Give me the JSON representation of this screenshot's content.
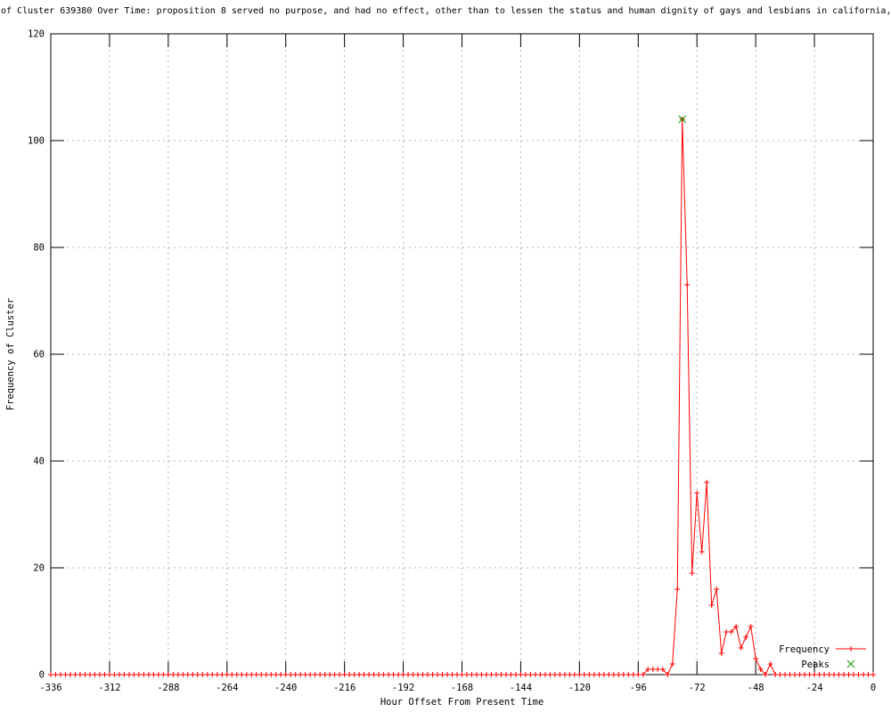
{
  "chart_data": {
    "type": "line",
    "title": "of Cluster 639380 Over Time: proposition 8 served no purpose, and had no effect, other than to lessen the status and human dignity of gays and lesbians in california,",
    "xlabel": "Hour Offset From Present Time",
    "ylabel": "Frequency of Cluster",
    "xlim": [
      -336,
      0
    ],
    "ylim": [
      0,
      120
    ],
    "xticks": [
      -336,
      -312,
      -288,
      -264,
      -240,
      -216,
      -192,
      -168,
      -144,
      -120,
      -96,
      -72,
      -48,
      -24,
      0
    ],
    "yticks": [
      0,
      20,
      40,
      60,
      80,
      100,
      120
    ],
    "grid": {
      "show": true,
      "style": "dotted",
      "color": "#b4b4b4"
    },
    "colors": {
      "frequency_line": "#ff0000",
      "peaks_marker": "#00a000",
      "axis": "#000000",
      "background": "#ffffff",
      "text": "#000000"
    },
    "legend": {
      "position": "inside-bottom-right",
      "entries": [
        {
          "label": "Frequency",
          "marker": "plus",
          "color": "#ff0000"
        },
        {
          "label": "Peaks",
          "marker": "cross",
          "color": "#00a000"
        }
      ]
    },
    "series": [
      {
        "name": "Frequency",
        "sample_step_hours": 2,
        "default_value": 0,
        "nonzero_points": [
          [
            -92,
            1
          ],
          [
            -90,
            1
          ],
          [
            -88,
            1
          ],
          [
            -86,
            1
          ],
          [
            -84,
            0
          ],
          [
            -82,
            2
          ],
          [
            -80,
            16
          ],
          [
            -78,
            104
          ],
          [
            -76,
            73
          ],
          [
            -74,
            19
          ],
          [
            -72,
            34
          ],
          [
            -70,
            23
          ],
          [
            -68,
            36
          ],
          [
            -66,
            13
          ],
          [
            -64,
            16
          ],
          [
            -62,
            4
          ],
          [
            -60,
            8
          ],
          [
            -58,
            8
          ],
          [
            -56,
            9
          ],
          [
            -54,
            5
          ],
          [
            -52,
            7
          ],
          [
            -50,
            9
          ],
          [
            -48,
            3
          ],
          [
            -46,
            1
          ],
          [
            -44,
            0
          ],
          [
            -42,
            2
          ],
          [
            -40,
            0
          ]
        ]
      },
      {
        "name": "Peaks",
        "points": [
          [
            -78,
            104
          ]
        ]
      }
    ]
  }
}
